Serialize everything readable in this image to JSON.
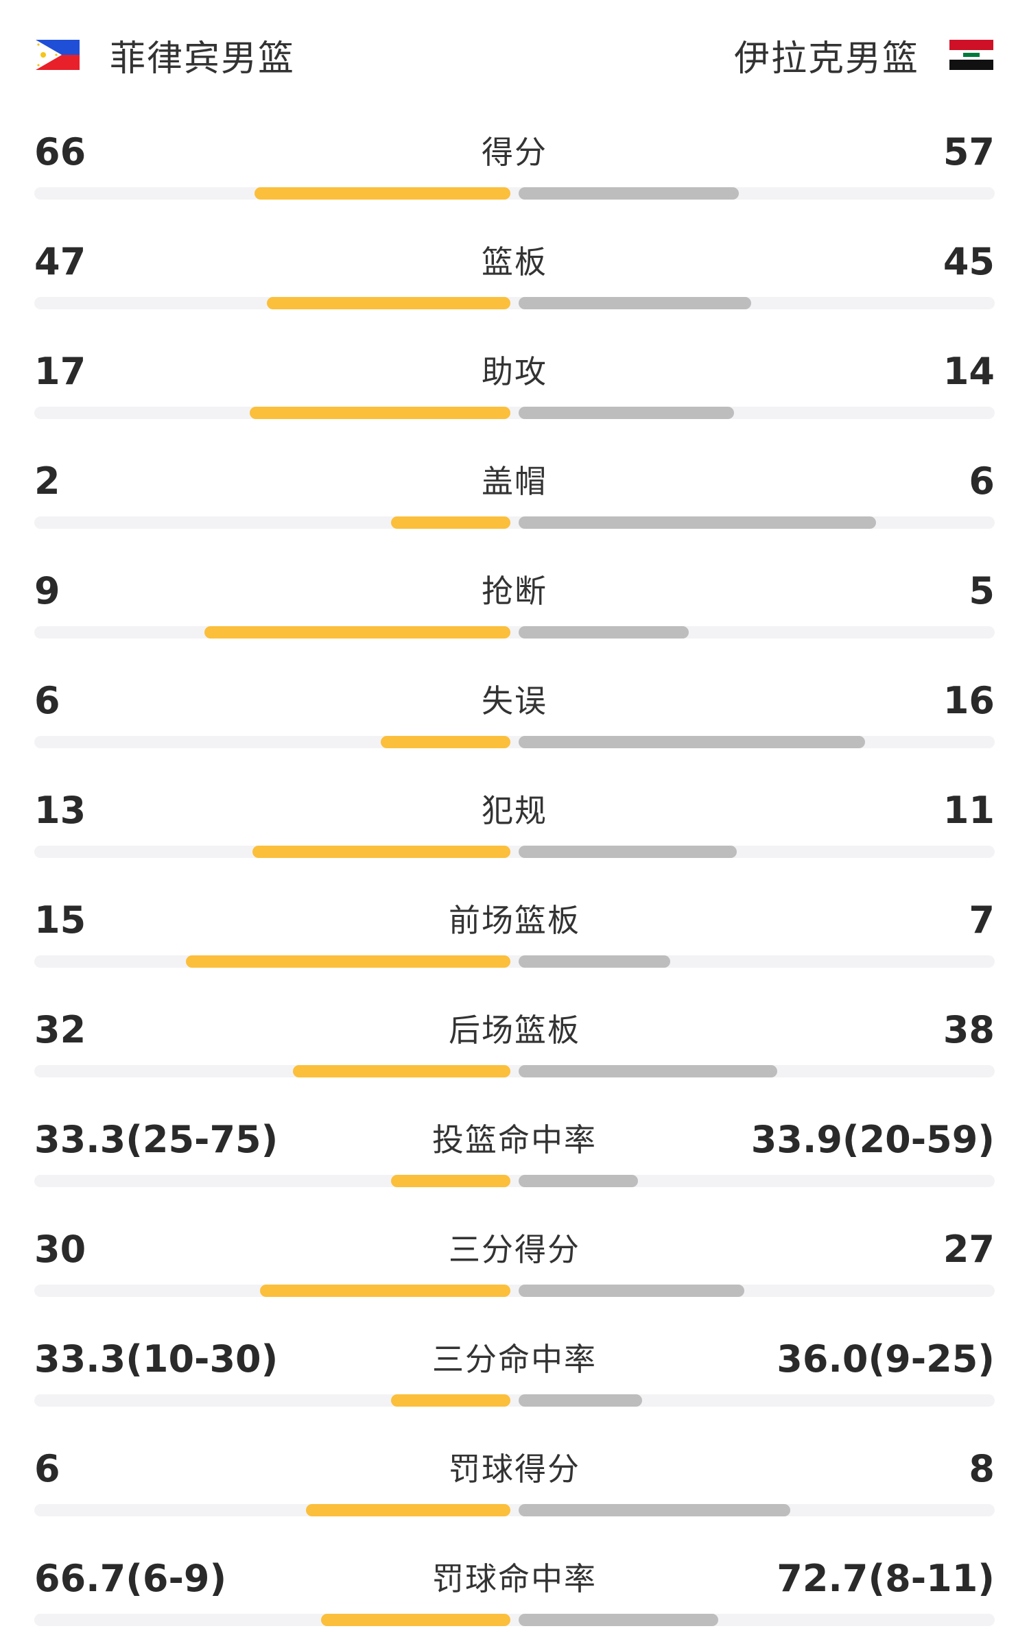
{
  "header": {
    "home_team": {
      "name": "菲律宾男篮",
      "flag_icon": "philippines-flag-icon"
    },
    "away_team": {
      "name": "伊拉克男篮",
      "flag_icon": "iraq-flag-icon"
    }
  },
  "colors": {
    "home_bar": "#fbbf3c",
    "away_bar": "#bdbdbd",
    "track": "#f3f3f5"
  },
  "stats": [
    {
      "label": "得分",
      "home": "66",
      "away": "57",
      "home_share": 0.537,
      "away_share": 0.463
    },
    {
      "label": "篮板",
      "home": "47",
      "away": "45",
      "home_share": 0.511,
      "away_share": 0.489
    },
    {
      "label": "助攻",
      "home": "17",
      "away": "14",
      "home_share": 0.548,
      "away_share": 0.452
    },
    {
      "label": "盖帽",
      "home": "2",
      "away": "6",
      "home_share": 0.25,
      "away_share": 0.75
    },
    {
      "label": "抢断",
      "home": "9",
      "away": "5",
      "home_share": 0.643,
      "away_share": 0.357
    },
    {
      "label": "失误",
      "home": "6",
      "away": "16",
      "home_share": 0.273,
      "away_share": 0.727
    },
    {
      "label": "犯规",
      "home": "13",
      "away": "11",
      "home_share": 0.542,
      "away_share": 0.458
    },
    {
      "label": "前场篮板",
      "home": "15",
      "away": "7",
      "home_share": 0.682,
      "away_share": 0.318
    },
    {
      "label": "后场篮板",
      "home": "32",
      "away": "38",
      "home_share": 0.457,
      "away_share": 0.543
    },
    {
      "label": "投篮命中率",
      "home": "33.3(25-75)",
      "away": "33.9(20-59)",
      "home_share": 0.25,
      "away_share": 0.25
    },
    {
      "label": "三分得分",
      "home": "30",
      "away": "27",
      "home_share": 0.526,
      "away_share": 0.474
    },
    {
      "label": "三分命中率",
      "home": "33.3(10-30)",
      "away": "36.0(9-25)",
      "home_share": 0.25,
      "away_share": 0.26
    },
    {
      "label": "罚球得分",
      "home": "6",
      "away": "8",
      "home_share": 0.429,
      "away_share": 0.571
    },
    {
      "label": "罚球命中率",
      "home": "66.7(6-9)",
      "away": "72.7(8-11)",
      "home_share": 0.397,
      "away_share": 0.42
    }
  ]
}
